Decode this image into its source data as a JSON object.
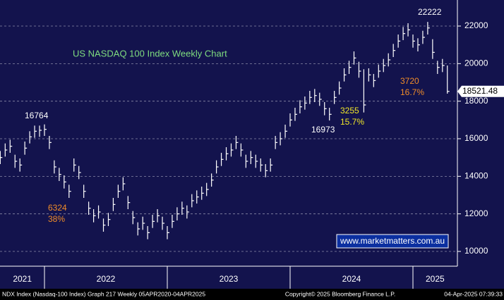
{
  "chart_data": {
    "type": "ohlc",
    "title": "US NASDAQ 100 Index Weekly Chart",
    "watermark": "www.marketmatters.com.au",
    "footer_left": "NDX Index (Nasdaq-100 Index) Graph 217  Weekly 05APR2020-04APR2025",
    "footer_center": "Copyright© 2025 Bloomberg Finance L.P.",
    "footer_right": "04-Apr-2025 07:39:33",
    "color": "#ffffff",
    "x": [
      2021.64,
      2021.68,
      2021.72,
      2021.76,
      2021.8,
      2021.84,
      2021.88,
      2021.92,
      2021.96,
      2022.0,
      2022.04,
      2022.08,
      2022.12,
      2022.16,
      2022.2,
      2022.24,
      2022.28,
      2022.32,
      2022.36,
      2022.4,
      2022.44,
      2022.48,
      2022.52,
      2022.56,
      2022.6,
      2022.64,
      2022.68,
      2022.72,
      2022.76,
      2022.8,
      2022.84,
      2022.88,
      2022.92,
      2022.96,
      2023.0,
      2023.04,
      2023.08,
      2023.12,
      2023.16,
      2023.2,
      2023.24,
      2023.28,
      2023.32,
      2023.36,
      2023.4,
      2023.44,
      2023.48,
      2023.52,
      2023.56,
      2023.6,
      2023.64,
      2023.68,
      2023.72,
      2023.76,
      2023.8,
      2023.84,
      2023.88,
      2023.92,
      2023.96,
      2024.0,
      2024.04,
      2024.08,
      2024.12,
      2024.16,
      2024.2,
      2024.24,
      2024.28,
      2024.32,
      2024.36,
      2024.4,
      2024.44,
      2024.48,
      2024.52,
      2024.56,
      2024.6,
      2024.64,
      2024.68,
      2024.72,
      2024.76,
      2024.8,
      2024.84,
      2024.88,
      2024.92,
      2024.96,
      2025.0,
      2025.04,
      2025.08,
      2025.12,
      2025.16,
      2025.2,
      2025.24,
      2025.28
    ],
    "high": [
      15350,
      15750,
      15950,
      15150,
      14950,
      15850,
      16400,
      16700,
      16700,
      16764,
      16150,
      14850,
      14450,
      14050,
      13550,
      14950,
      14550,
      13550,
      12650,
      12250,
      12450,
      11750,
      12050,
      12850,
      13550,
      13950,
      12950,
      12150,
      11550,
      11850,
      11350,
      11950,
      12250,
      11850,
      11350,
      11950,
      12350,
      12650,
      12450,
      13050,
      13250,
      13450,
      13650,
      14150,
      14850,
      15250,
      15550,
      15750,
      16150,
      15750,
      15150,
      15350,
      15150,
      14950,
      14650,
      14950,
      16150,
      16350,
      16750,
      17350,
      17650,
      18050,
      18250,
      18550,
      18650,
      18450,
      17950,
      17650,
      18550,
      19050,
      19750,
      20150,
      20650,
      20100,
      19700,
      19750,
      19450,
      19950,
      20250,
      20550,
      21050,
      21550,
      21950,
      22150,
      21550,
      21350,
      21750,
      22222,
      21300,
      20150,
      20250,
      19900
    ],
    "low": [
      14650,
      15050,
      15250,
      14450,
      14250,
      15150,
      15750,
      16050,
      16100,
      16150,
      15450,
      14150,
      13750,
      13350,
      12850,
      14250,
      13850,
      12850,
      11950,
      11550,
      11750,
      11050,
      11350,
      12150,
      12850,
      13250,
      12250,
      11450,
      10850,
      11150,
      10650,
      11250,
      11550,
      11150,
      10650,
      11250,
      11650,
      11950,
      11750,
      12350,
      12550,
      12750,
      12950,
      13450,
      14150,
      14550,
      14850,
      15050,
      15450,
      15050,
      14450,
      14650,
      14450,
      14250,
      13950,
      14250,
      15450,
      15650,
      16050,
      16650,
      16950,
      17350,
      17550,
      17850,
      17950,
      17750,
      17250,
      16973,
      17850,
      18350,
      19050,
      19450,
      19950,
      19250,
      17400,
      19050,
      18750,
      19250,
      19550,
      19850,
      20350,
      20850,
      21250,
      21450,
      20850,
      20650,
      21050,
      21550,
      20250,
      19450,
      19550,
      18400
    ],
    "close": [
      15000,
      15400,
      15600,
      14800,
      14600,
      15500,
      16100,
      16400,
      16450,
      16500,
      15800,
      14500,
      14100,
      13700,
      13200,
      14600,
      14200,
      13200,
      12300,
      11900,
      12100,
      11400,
      11700,
      12500,
      13200,
      13600,
      12600,
      11800,
      11200,
      11500,
      11000,
      11600,
      11900,
      11500,
      11000,
      11600,
      12000,
      12300,
      12100,
      12700,
      12900,
      13100,
      13300,
      13800,
      14500,
      14900,
      15200,
      15400,
      15800,
      15400,
      14800,
      15000,
      14800,
      14600,
      14300,
      14600,
      15800,
      16000,
      16400,
      17000,
      17300,
      17700,
      17900,
      18200,
      18300,
      18100,
      17600,
      17300,
      18200,
      18700,
      19400,
      19800,
      20300,
      19600,
      17800,
      19400,
      19100,
      19600,
      19900,
      20200,
      20700,
      21200,
      21600,
      21800,
      21200,
      21000,
      21400,
      21900,
      20600,
      19800,
      19900,
      18521.48
    ],
    "xlim": [
      2021.638,
      2025.362
    ],
    "xticks": [
      2022,
      2023,
      2024,
      2025
    ],
    "year_labels": [
      {
        "value": 2021.82,
        "label": "2021"
      },
      {
        "value": 2022.5,
        "label": "2022"
      },
      {
        "value": 2023.5,
        "label": "2023"
      },
      {
        "value": 2024.5,
        "label": "2024"
      },
      {
        "value": 2025.18,
        "label": "2025"
      }
    ],
    "ylim": [
      9213,
      23388
    ],
    "yticks": [
      10000,
      12000,
      14000,
      16000,
      18000,
      20000,
      22000
    ],
    "grid": true,
    "annotations": [
      {
        "text": "16764",
        "color": "#ffffff"
      },
      {
        "text": "6324",
        "color": "#f08c28"
      },
      {
        "text": "38%",
        "color": "#f08c28"
      },
      {
        "text": "16973",
        "color": "#ffffff"
      },
      {
        "text": "3255",
        "color": "#f0e628"
      },
      {
        "text": "15.7%",
        "color": "#f0e628"
      },
      {
        "text": "3720",
        "color": "#f08c28"
      },
      {
        "text": "16.7%",
        "color": "#f08c28"
      },
      {
        "text": "22222",
        "color": "#ffffff"
      }
    ]
  }
}
